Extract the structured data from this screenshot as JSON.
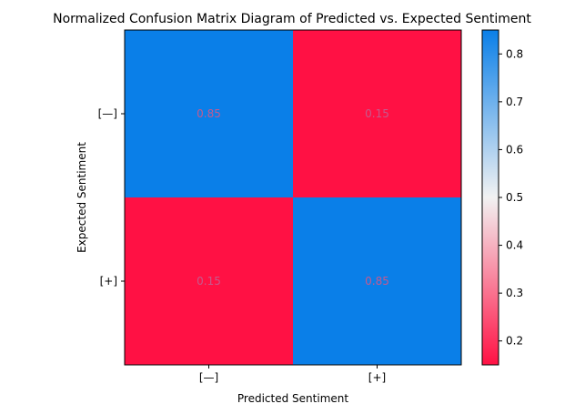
{
  "chart_data": {
    "type": "heatmap",
    "title": "Normalized Confusion Matrix Diagram of Predicted vs. Expected Sentiment",
    "xlabel": "Predicted Sentiment",
    "ylabel": "Expected Sentiment",
    "x_categories": [
      "[—]",
      "[+]"
    ],
    "y_categories": [
      "[—]",
      "[+]"
    ],
    "values": [
      [
        0.85,
        0.15
      ],
      [
        0.15,
        0.85
      ]
    ],
    "cell_labels": [
      [
        "0.85",
        "0.15"
      ],
      [
        "0.15",
        "0.85"
      ]
    ],
    "value_range": [
      0.15,
      0.85
    ],
    "colorbar": {
      "ticks": [
        0.2,
        0.3,
        0.4,
        0.5,
        0.6,
        0.7,
        0.8
      ],
      "tick_labels": [
        "0.2",
        "0.3",
        "0.4",
        "0.5",
        "0.6",
        "0.7",
        "0.8"
      ]
    },
    "colors": {
      "low": "#ff1144",
      "mid": "#f2f2f2",
      "high": "#0a7fe8",
      "annotation": "#c65a8e"
    },
    "grid": false
  }
}
